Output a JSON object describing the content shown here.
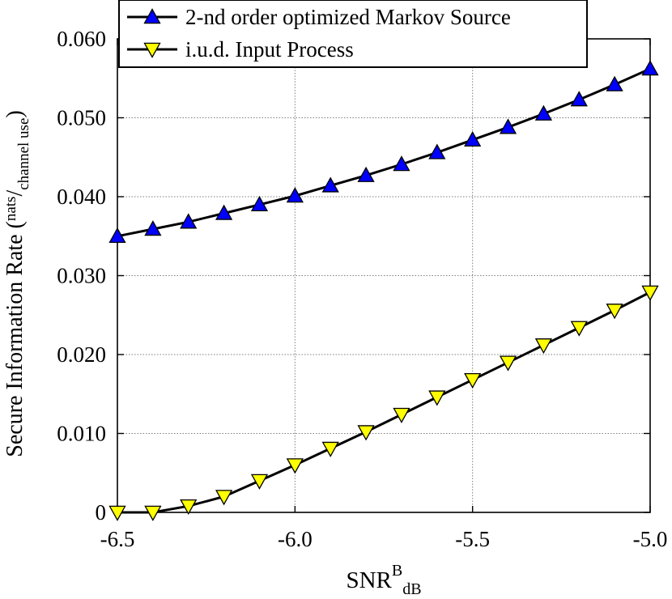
{
  "chart_data": {
    "type": "line",
    "xlabel": {
      "main": "SNR",
      "sup": "B",
      "sub": "dB"
    },
    "ylabel": {
      "main": "Secure Information Rate (",
      "num": "nats",
      "slash": "/",
      "den": "channel use",
      "close": ")"
    },
    "xlim": [
      -6.5,
      -5.0
    ],
    "ylim": [
      0,
      0.06
    ],
    "xticks": [
      -6.5,
      -6.0,
      -5.5,
      -5.0
    ],
    "xtick_labels": [
      "-6.5",
      "-6.0",
      "-5.5",
      "-5.0"
    ],
    "yticks": [
      0,
      0.01,
      0.02,
      0.03,
      0.04,
      0.05,
      0.06
    ],
    "ytick_labels": [
      "0",
      "0.010",
      "0.020",
      "0.030",
      "0.040",
      "0.050",
      "0.060"
    ],
    "grid": true,
    "legend_position": "top-left",
    "x": [
      -6.5,
      -6.4,
      -6.3,
      -6.2,
      -6.1,
      -6.0,
      -5.9,
      -5.8,
      -5.7,
      -5.6,
      -5.5,
      -5.4,
      -5.3,
      -5.2,
      -5.1,
      -5.0
    ],
    "series": [
      {
        "name": "2-nd order optimized Markov Source",
        "marker": "triangle-up",
        "color": "#0000ff",
        "values": [
          0.035,
          0.0359,
          0.0368,
          0.0379,
          0.039,
          0.0401,
          0.0414,
          0.0427,
          0.0441,
          0.0456,
          0.0472,
          0.0488,
          0.0505,
          0.0523,
          0.0542,
          0.0562
        ]
      },
      {
        "name": "i.u.d. Input Process",
        "marker": "triangle-down",
        "color": "#ffff00",
        "values": [
          0.0,
          0.0,
          0.0008,
          0.002,
          0.004,
          0.006,
          0.0081,
          0.0102,
          0.0124,
          0.0146,
          0.0168,
          0.019,
          0.0212,
          0.0234,
          0.0256,
          0.0279
        ]
      }
    ]
  }
}
